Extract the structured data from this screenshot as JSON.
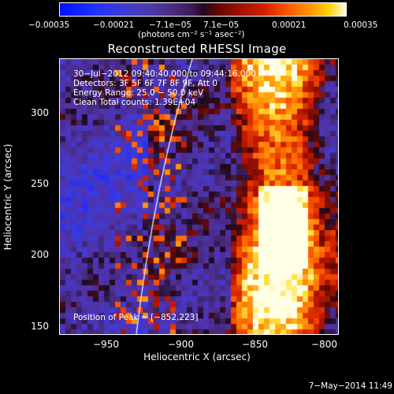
{
  "colorbar": {
    "ticks": [
      "−0.00035",
      "−0.00021",
      "−7.1e−05",
      "7.1e−05",
      "0.00021",
      "0.00035"
    ],
    "unit_label": "(photons cm⁻² s⁻¹ asec⁻²)"
  },
  "title": "Reconstructed RHESSI Image",
  "annotations": {
    "time_range": "30−Jul−2012 09:40:40.000 to 09:44:16.000",
    "detectors": "Detectors: 3F 5F 6F 7F 8F 9F, Att 0",
    "energy": "Energy Range: 25.0 − 50.0 keV",
    "clean": "Clean     Total counts: 1.39E+04",
    "peak": "Position of Peak = [−852,223]"
  },
  "axes": {
    "xlabel": "Heliocentric X (arcsec)",
    "ylabel": "Heliocentric Y (arcsec)",
    "xticks": [
      "−950",
      "−900",
      "−850",
      "−800"
    ],
    "yticks": [
      "300",
      "250",
      "200",
      "150"
    ]
  },
  "footer": {
    "date": "7−May−2014 11:49"
  }
}
